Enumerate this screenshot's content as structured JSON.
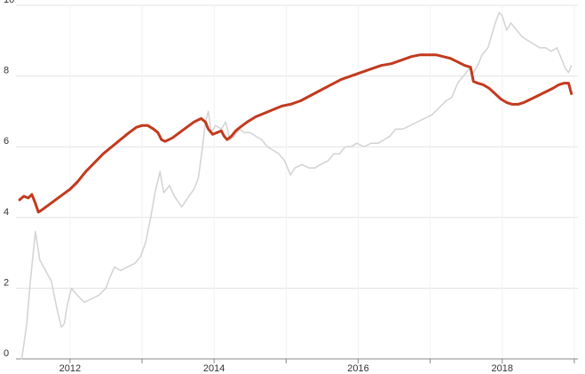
{
  "chart_data": {
    "type": "line",
    "title": "",
    "xlabel": "",
    "ylabel": "",
    "xlim": [
      2011.25,
      2019.05
    ],
    "ylim": [
      0,
      10
    ],
    "grid": true,
    "legend": "none",
    "x_ticks": [
      {
        "value": 2012,
        "label": "2012"
      },
      {
        "value": 2014,
        "label": "2014"
      },
      {
        "value": 2016,
        "label": "2016"
      },
      {
        "value": 2018,
        "label": "2018"
      }
    ],
    "y_ticks": [
      {
        "value": 0,
        "label": "0"
      },
      {
        "value": 2,
        "label": "2"
      },
      {
        "value": 4,
        "label": "4"
      },
      {
        "value": 6,
        "label": "6"
      },
      {
        "value": 8,
        "label": "8"
      },
      {
        "value": 10,
        "label": "10"
      }
    ],
    "series": [
      {
        "color": "#d5d5d5",
        "points": [
          [
            2011.33,
            0.0
          ],
          [
            2011.4,
            1.0
          ],
          [
            2011.45,
            2.2
          ],
          [
            2011.52,
            3.6
          ],
          [
            2011.58,
            2.8
          ],
          [
            2011.66,
            2.5
          ],
          [
            2011.74,
            2.2
          ],
          [
            2011.82,
            1.4
          ],
          [
            2011.88,
            0.9
          ],
          [
            2011.92,
            1.0
          ],
          [
            2011.97,
            1.6
          ],
          [
            2012.02,
            2.0
          ],
          [
            2012.1,
            1.8
          ],
          [
            2012.2,
            1.6
          ],
          [
            2012.3,
            1.7
          ],
          [
            2012.4,
            1.8
          ],
          [
            2012.5,
            2.0
          ],
          [
            2012.55,
            2.3
          ],
          [
            2012.62,
            2.6
          ],
          [
            2012.7,
            2.5
          ],
          [
            2012.8,
            2.6
          ],
          [
            2012.9,
            2.7
          ],
          [
            2012.98,
            2.9
          ],
          [
            2013.05,
            3.3
          ],
          [
            2013.12,
            4.0
          ],
          [
            2013.18,
            4.7
          ],
          [
            2013.25,
            5.3
          ],
          [
            2013.3,
            4.7
          ],
          [
            2013.38,
            4.9
          ],
          [
            2013.45,
            4.6
          ],
          [
            2013.55,
            4.3
          ],
          [
            2013.65,
            4.6
          ],
          [
            2013.72,
            4.8
          ],
          [
            2013.78,
            5.1
          ],
          [
            2013.84,
            6.0
          ],
          [
            2013.88,
            6.7
          ],
          [
            2013.92,
            7.0
          ],
          [
            2013.96,
            6.4
          ],
          [
            2014.02,
            6.6
          ],
          [
            2014.1,
            6.5
          ],
          [
            2014.16,
            6.7
          ],
          [
            2014.22,
            6.2
          ],
          [
            2014.28,
            6.3
          ],
          [
            2014.35,
            6.5
          ],
          [
            2014.42,
            6.4
          ],
          [
            2014.5,
            6.4
          ],
          [
            2014.58,
            6.3
          ],
          [
            2014.66,
            6.2
          ],
          [
            2014.74,
            6.0
          ],
          [
            2014.82,
            5.9
          ],
          [
            2014.9,
            5.8
          ],
          [
            2014.98,
            5.6
          ],
          [
            2015.06,
            5.2
          ],
          [
            2015.12,
            5.4
          ],
          [
            2015.22,
            5.5
          ],
          [
            2015.32,
            5.4
          ],
          [
            2015.4,
            5.4
          ],
          [
            2015.48,
            5.5
          ],
          [
            2015.58,
            5.6
          ],
          [
            2015.66,
            5.8
          ],
          [
            2015.74,
            5.8
          ],
          [
            2015.82,
            6.0
          ],
          [
            2015.9,
            6.0
          ],
          [
            2015.98,
            6.1
          ],
          [
            2016.08,
            6.0
          ],
          [
            2016.18,
            6.1
          ],
          [
            2016.28,
            6.1
          ],
          [
            2016.36,
            6.2
          ],
          [
            2016.44,
            6.3
          ],
          [
            2016.52,
            6.5
          ],
          [
            2016.62,
            6.5
          ],
          [
            2016.72,
            6.6
          ],
          [
            2016.82,
            6.7
          ],
          [
            2016.92,
            6.8
          ],
          [
            2017.02,
            6.9
          ],
          [
            2017.12,
            7.1
          ],
          [
            2017.22,
            7.3
          ],
          [
            2017.3,
            7.4
          ],
          [
            2017.38,
            7.8
          ],
          [
            2017.46,
            8.0
          ],
          [
            2017.54,
            8.2
          ],
          [
            2017.6,
            8.1
          ],
          [
            2017.66,
            8.3
          ],
          [
            2017.72,
            8.6
          ],
          [
            2017.8,
            8.8
          ],
          [
            2017.86,
            9.2
          ],
          [
            2017.92,
            9.6
          ],
          [
            2017.96,
            9.8
          ],
          [
            2018.0,
            9.7
          ],
          [
            2018.06,
            9.3
          ],
          [
            2018.12,
            9.5
          ],
          [
            2018.2,
            9.3
          ],
          [
            2018.28,
            9.1
          ],
          [
            2018.36,
            9.0
          ],
          [
            2018.44,
            8.9
          ],
          [
            2018.52,
            8.8
          ],
          [
            2018.6,
            8.8
          ],
          [
            2018.68,
            8.7
          ],
          [
            2018.76,
            8.8
          ],
          [
            2018.82,
            8.5
          ],
          [
            2018.88,
            8.2
          ],
          [
            2018.92,
            8.1
          ],
          [
            2018.96,
            8.3
          ]
        ]
      },
      {
        "color": "#c23a1e",
        "points": [
          [
            2011.3,
            4.5
          ],
          [
            2011.36,
            4.6
          ],
          [
            2011.42,
            4.55
          ],
          [
            2011.47,
            4.65
          ],
          [
            2011.52,
            4.4
          ],
          [
            2011.56,
            4.15
          ],
          [
            2011.6,
            4.2
          ],
          [
            2011.7,
            4.35
          ],
          [
            2011.8,
            4.5
          ],
          [
            2011.9,
            4.65
          ],
          [
            2012.0,
            4.8
          ],
          [
            2012.1,
            5.0
          ],
          [
            2012.22,
            5.3
          ],
          [
            2012.34,
            5.55
          ],
          [
            2012.46,
            5.8
          ],
          [
            2012.58,
            6.0
          ],
          [
            2012.7,
            6.2
          ],
          [
            2012.82,
            6.4
          ],
          [
            2012.92,
            6.55
          ],
          [
            2013.0,
            6.6
          ],
          [
            2013.08,
            6.6
          ],
          [
            2013.16,
            6.5
          ],
          [
            2013.22,
            6.4
          ],
          [
            2013.27,
            6.2
          ],
          [
            2013.32,
            6.15
          ],
          [
            2013.42,
            6.25
          ],
          [
            2013.52,
            6.4
          ],
          [
            2013.62,
            6.55
          ],
          [
            2013.72,
            6.7
          ],
          [
            2013.82,
            6.8
          ],
          [
            2013.88,
            6.7
          ],
          [
            2013.92,
            6.5
          ],
          [
            2013.98,
            6.35
          ],
          [
            2014.04,
            6.4
          ],
          [
            2014.1,
            6.45
          ],
          [
            2014.14,
            6.3
          ],
          [
            2014.18,
            6.2
          ],
          [
            2014.24,
            6.3
          ],
          [
            2014.3,
            6.45
          ],
          [
            2014.36,
            6.55
          ],
          [
            2014.46,
            6.7
          ],
          [
            2014.58,
            6.85
          ],
          [
            2014.7,
            6.95
          ],
          [
            2014.82,
            7.05
          ],
          [
            2014.94,
            7.15
          ],
          [
            2015.06,
            7.2
          ],
          [
            2015.2,
            7.3
          ],
          [
            2015.34,
            7.45
          ],
          [
            2015.48,
            7.6
          ],
          [
            2015.62,
            7.75
          ],
          [
            2015.76,
            7.9
          ],
          [
            2015.9,
            8.0
          ],
          [
            2016.04,
            8.1
          ],
          [
            2016.18,
            8.2
          ],
          [
            2016.32,
            8.3
          ],
          [
            2016.46,
            8.35
          ],
          [
            2016.6,
            8.45
          ],
          [
            2016.74,
            8.55
          ],
          [
            2016.86,
            8.6
          ],
          [
            2016.98,
            8.6
          ],
          [
            2017.08,
            8.6
          ],
          [
            2017.18,
            8.55
          ],
          [
            2017.28,
            8.5
          ],
          [
            2017.38,
            8.4
          ],
          [
            2017.48,
            8.3
          ],
          [
            2017.56,
            8.25
          ],
          [
            2017.6,
            7.85
          ],
          [
            2017.66,
            7.8
          ],
          [
            2017.74,
            7.75
          ],
          [
            2017.82,
            7.65
          ],
          [
            2017.9,
            7.5
          ],
          [
            2017.98,
            7.35
          ],
          [
            2018.06,
            7.25
          ],
          [
            2018.14,
            7.2
          ],
          [
            2018.22,
            7.2
          ],
          [
            2018.3,
            7.25
          ],
          [
            2018.4,
            7.35
          ],
          [
            2018.5,
            7.45
          ],
          [
            2018.6,
            7.55
          ],
          [
            2018.7,
            7.65
          ],
          [
            2018.78,
            7.75
          ],
          [
            2018.86,
            7.8
          ],
          [
            2018.92,
            7.8
          ],
          [
            2018.96,
            7.5
          ]
        ]
      }
    ]
  }
}
